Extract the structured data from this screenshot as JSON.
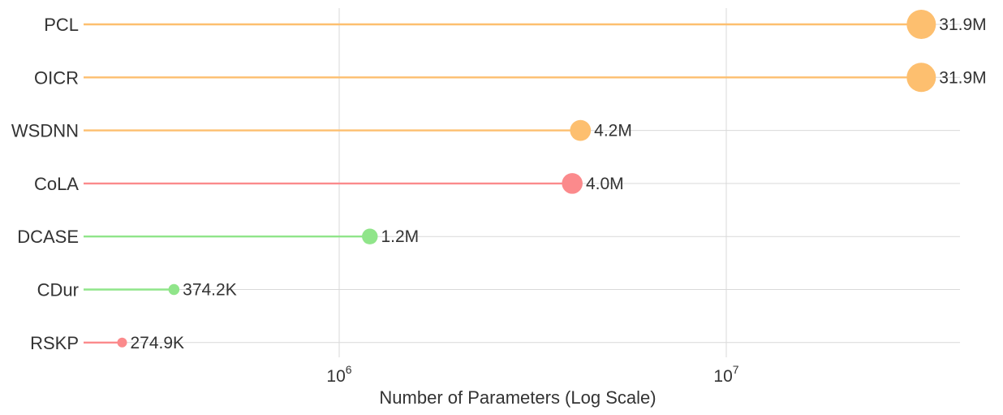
{
  "chart_data": {
    "type": "lollipop",
    "xlabel": "Number of Parameters (Log Scale)",
    "x_scale": "log",
    "x_ticks": [
      {
        "value": 1000000,
        "base": "10",
        "exp": "6"
      },
      {
        "value": 10000000,
        "base": "10",
        "exp": "7"
      }
    ],
    "xlim": [
      230000,
      45000000
    ],
    "grid": true,
    "items": [
      {
        "name": "PCL",
        "value": 31900000,
        "label": "31.9M",
        "color": "#fdbf6f"
      },
      {
        "name": "OICR",
        "value": 31900000,
        "label": "31.9M",
        "color": "#fdbf6f"
      },
      {
        "name": "WSDNN",
        "value": 4200000,
        "label": "4.2M",
        "color": "#fdbf6f"
      },
      {
        "name": "CoLA",
        "value": 4000000,
        "label": "4.0M",
        "color": "#fb8a8c"
      },
      {
        "name": "DCASE",
        "value": 1200000,
        "label": "1.2M",
        "color": "#90e58a"
      },
      {
        "name": "CDur",
        "value": 374200,
        "label": "374.2K",
        "color": "#90e58a"
      },
      {
        "name": "RSKP",
        "value": 274900,
        "label": "274.9K",
        "color": "#fb8a8c"
      }
    ]
  }
}
